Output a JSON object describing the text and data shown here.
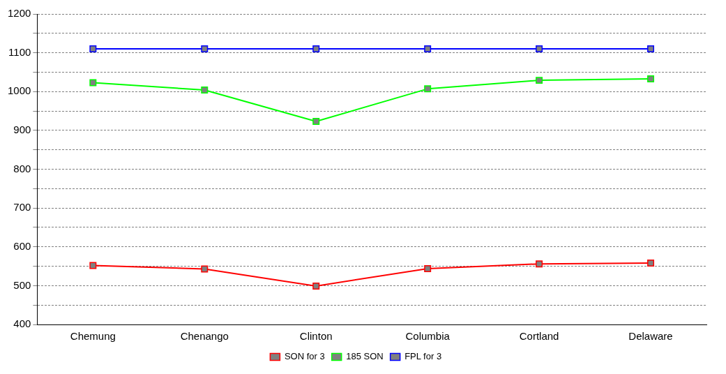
{
  "chart_data": {
    "type": "line",
    "categories": [
      "Chemung",
      "Chenango",
      "Clinton",
      "Columbia",
      "Cortland",
      "Delaware"
    ],
    "series": [
      {
        "name": "SON for 3",
        "color": "#ff0000",
        "values": [
          552,
          543,
          499,
          544,
          556,
          558
        ]
      },
      {
        "name": "185 SON",
        "color": "#00ff00",
        "values": [
          1023,
          1004,
          923,
          1007,
          1029,
          1033
        ]
      },
      {
        "name": "FPL for 3",
        "color": "#0000ff",
        "values": [
          1110,
          1110,
          1110,
          1110,
          1110,
          1110
        ]
      }
    ],
    "ylim": [
      400,
      1200
    ],
    "yticks": [
      400,
      {
        "value": 450,
        "label": null
      },
      500,
      {
        "value": 550,
        "label": null
      },
      600,
      {
        "value": 650,
        "label": null
      },
      700,
      {
        "value": 750,
        "label": null
      },
      800,
      {
        "value": 850,
        "label": null
      },
      900,
      {
        "value": 950,
        "label": null
      },
      1000,
      {
        "value": 1050,
        "label": null
      },
      1100,
      {
        "value": 1150,
        "label": null
      },
      1200
    ],
    "grid": "y",
    "legend": "bottom",
    "marker": "square",
    "line_style": "solid"
  }
}
